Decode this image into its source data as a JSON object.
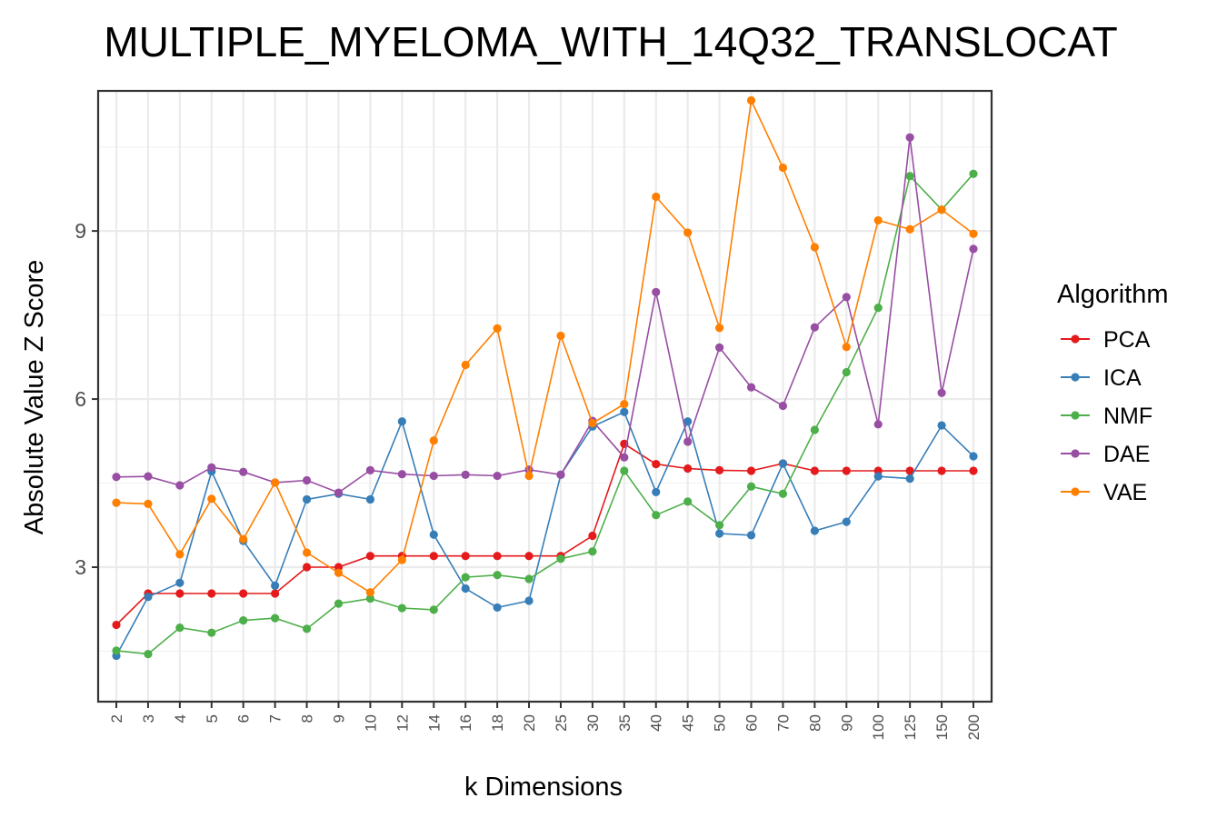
{
  "chart_data": {
    "type": "line",
    "title": "MULTIPLE_MYELOMA_WITH_14Q32_TRANSLOCAT",
    "xlabel": "k Dimensions",
    "ylabel": "Absolute Value Z Score",
    "categories": [
      "2",
      "3",
      "4",
      "5",
      "6",
      "7",
      "8",
      "9",
      "10",
      "12",
      "14",
      "16",
      "18",
      "20",
      "25",
      "30",
      "35",
      "40",
      "45",
      "50",
      "60",
      "70",
      "80",
      "90",
      "100",
      "125",
      "150",
      "200"
    ],
    "yticks": [
      3,
      6,
      9
    ],
    "ylim": [
      0.6,
      11.5
    ],
    "grid": true,
    "legend": {
      "title": "Algorithm",
      "position": "right"
    },
    "series": [
      {
        "name": "PCA",
        "color": "#e41a1c",
        "values": [
          1.97,
          2.53,
          2.53,
          2.53,
          2.53,
          2.53,
          3.0,
          3.0,
          3.2,
          3.2,
          3.2,
          3.2,
          3.2,
          3.2,
          3.2,
          3.56,
          5.2,
          4.84,
          4.76,
          4.73,
          4.72,
          4.85,
          4.72,
          4.72,
          4.72,
          4.72,
          4.72,
          4.72
        ]
      },
      {
        "name": "ICA",
        "color": "#377eb8",
        "values": [
          1.42,
          2.47,
          2.72,
          4.71,
          3.47,
          2.67,
          4.21,
          4.31,
          4.21,
          5.6,
          3.58,
          2.62,
          2.28,
          2.4,
          4.65,
          5.51,
          5.77,
          4.34,
          5.6,
          3.6,
          3.57,
          4.85,
          3.65,
          3.81,
          4.62,
          4.58,
          5.53,
          4.98
        ]
      },
      {
        "name": "NMF",
        "color": "#4daf4a",
        "values": [
          1.51,
          1.45,
          1.92,
          1.83,
          2.05,
          2.09,
          1.9,
          2.35,
          2.44,
          2.27,
          2.24,
          2.82,
          2.86,
          2.79,
          3.15,
          3.28,
          4.72,
          3.93,
          4.17,
          3.75,
          4.44,
          4.31,
          5.45,
          6.48,
          7.63,
          9.98,
          9.38,
          10.02
        ]
      },
      {
        "name": "DAE",
        "color": "#984ea3",
        "values": [
          4.61,
          4.62,
          4.46,
          4.78,
          4.7,
          4.51,
          4.55,
          4.33,
          4.73,
          4.66,
          4.63,
          4.65,
          4.63,
          4.74,
          4.65,
          5.61,
          4.96,
          7.91,
          5.24,
          6.92,
          6.21,
          5.88,
          7.28,
          7.82,
          5.55,
          10.67,
          6.11,
          8.68
        ]
      },
      {
        "name": "VAE",
        "color": "#ff7f00",
        "values": [
          4.15,
          4.13,
          3.23,
          4.22,
          3.5,
          4.51,
          3.26,
          2.9,
          2.55,
          3.13,
          5.26,
          6.61,
          7.26,
          4.63,
          7.13,
          5.57,
          5.91,
          9.61,
          8.97,
          7.27,
          11.33,
          10.13,
          8.71,
          6.93,
          9.19,
          9.03,
          9.38,
          8.95
        ]
      }
    ]
  }
}
